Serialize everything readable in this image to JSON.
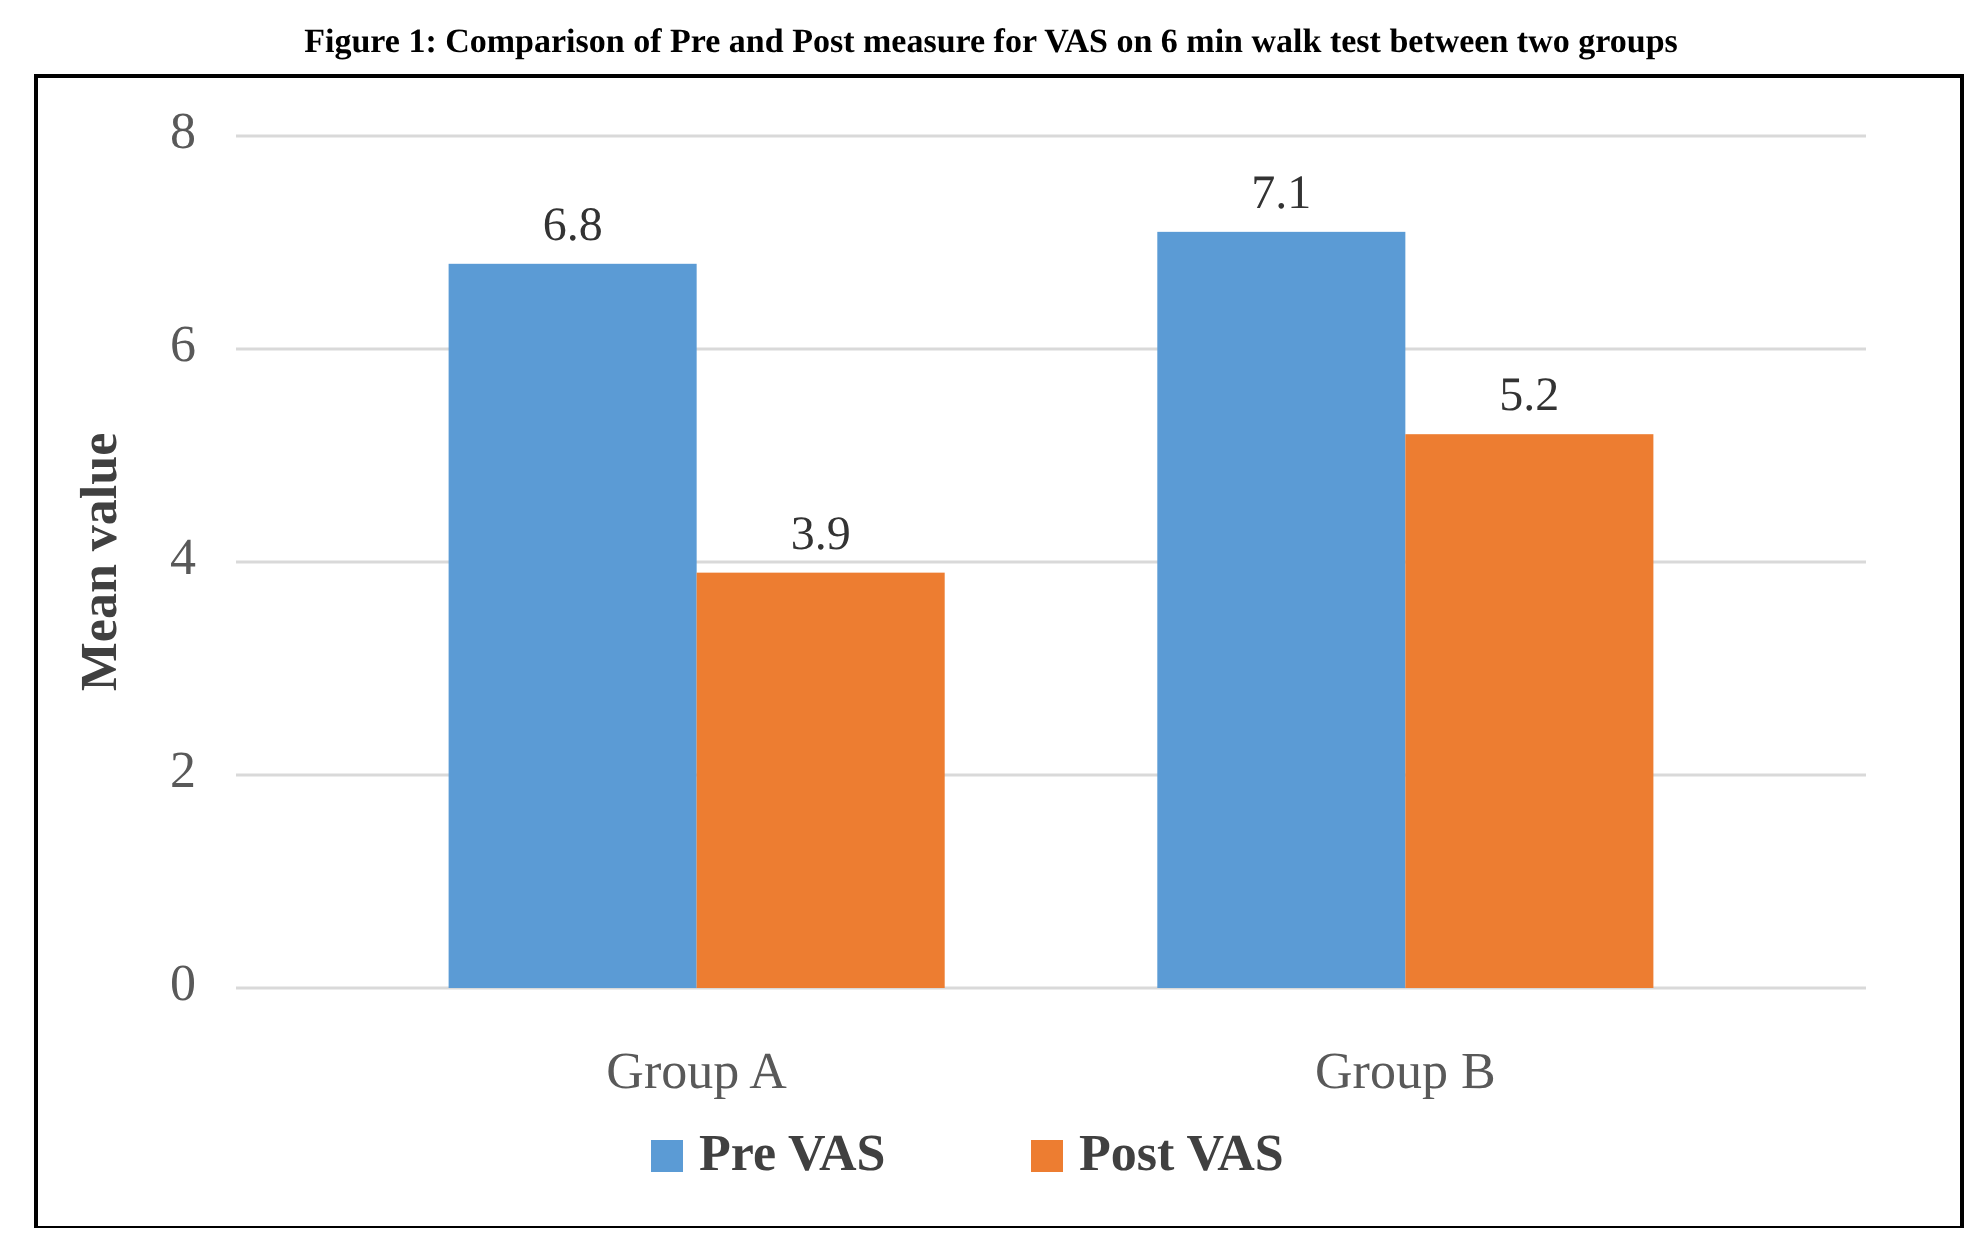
{
  "chart_data": {
    "type": "bar",
    "title": "Figure 1: Comparison of Pre and Post measure for VAS on 6 min walk test between two groups",
    "ylabel": "Mean value",
    "categories": [
      "Group A",
      "Group B"
    ],
    "series": [
      {
        "name": "Pre VAS",
        "color": "#5b9bd5",
        "values": [
          6.8,
          7.1
        ]
      },
      {
        "name": "Post VAS",
        "color": "#ed7d31",
        "values": [
          3.9,
          5.2
        ]
      }
    ],
    "ylim": [
      0,
      8
    ],
    "yticks": [
      0,
      2,
      4,
      6,
      8
    ],
    "grid": "y",
    "legend": "bottom",
    "data_labels": true
  }
}
